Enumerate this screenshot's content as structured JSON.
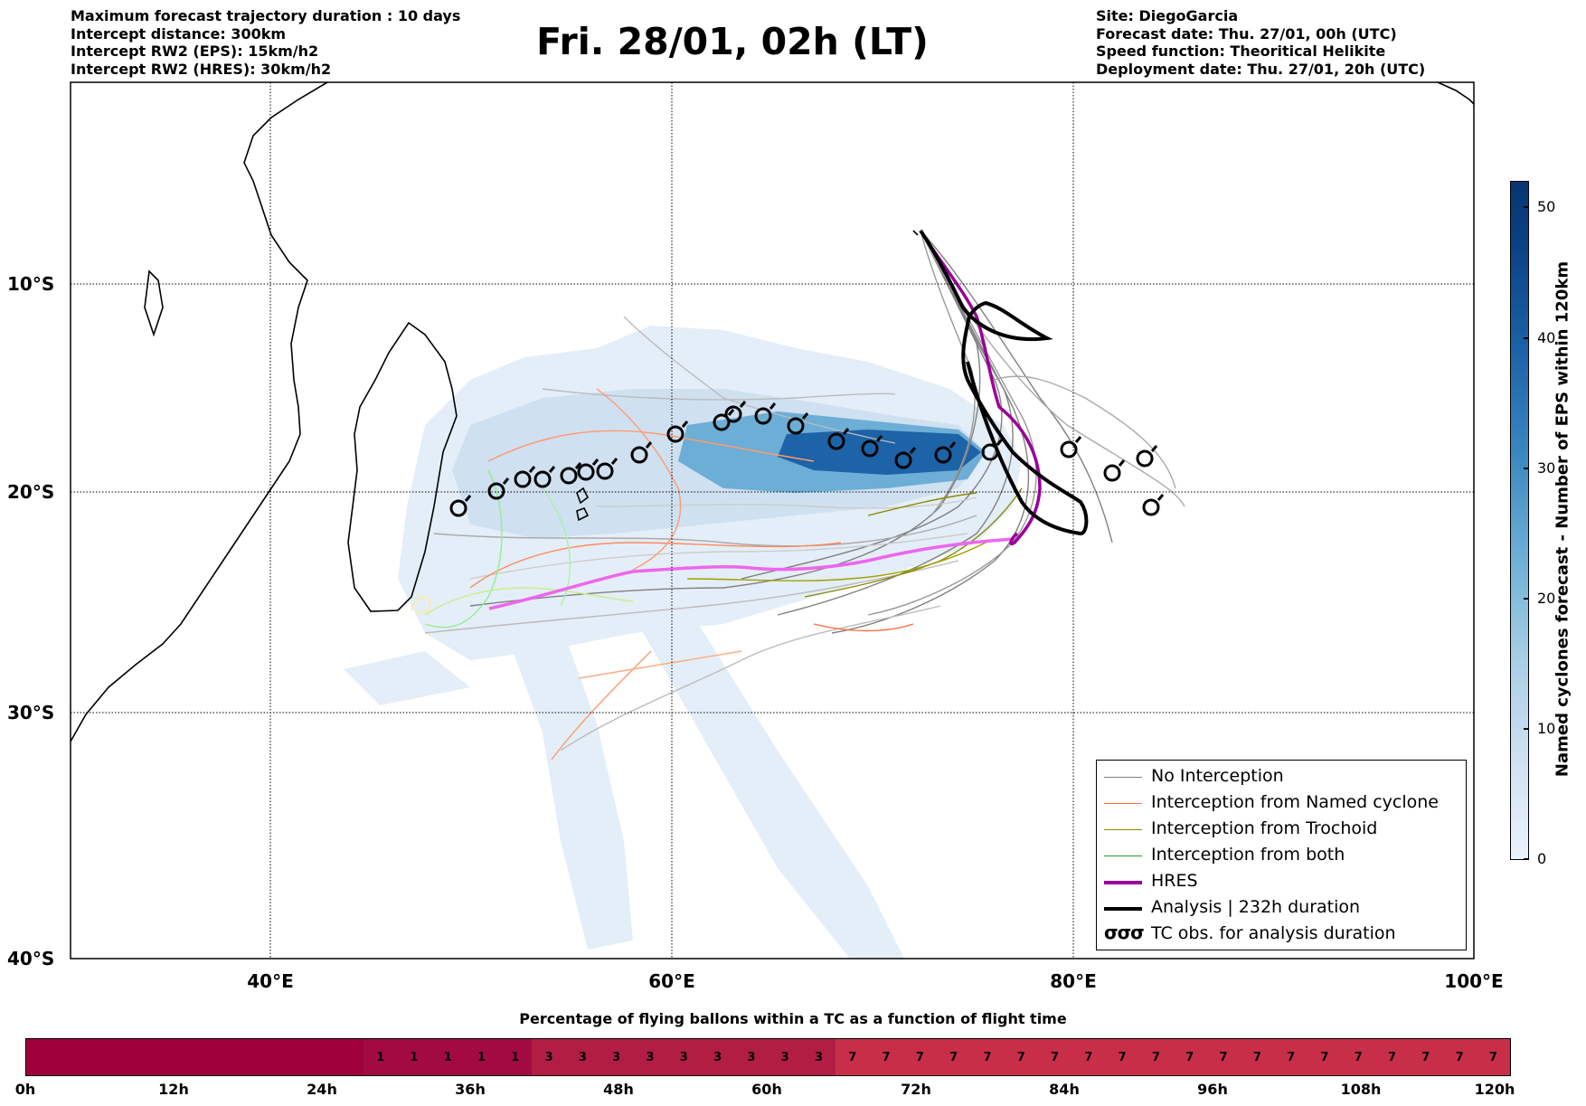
{
  "header_left": {
    "line1": "Maximum forecast trajectory duration : 10 days",
    "line2": "Intercept distance: 300km",
    "line3": "Intercept RW2 (EPS):  15km/h2",
    "line4": "Intercept RW2 (HRES): 30km/h2"
  },
  "title": "Fri. 28/01, 02h (LT)",
  "header_right": {
    "line1": "Site: DiegoGarcia",
    "line2": "Forecast date: Thu. 27/01, 00h (UTC)",
    "line3": "Speed function: Theoritical Helikite",
    "line4": "Deployment date: Thu. 27/01, 20h (UTC)"
  },
  "map": {
    "lat_labels": [
      "10°S",
      "20°S",
      "30°S",
      "40°S"
    ],
    "lon_labels": [
      "40°E",
      "60°E",
      "80°E",
      "100°E"
    ],
    "colors": {
      "no_interception": "#808080",
      "named_cyclone": "#ff6a3d",
      "trochoid": "#8a8a00",
      "both": "#2a9a2a",
      "hres": "#990099",
      "analysis": "#000000",
      "hres_light": "#ee66ee"
    }
  },
  "legend": {
    "items": [
      {
        "label": "No Interception",
        "icon": "grey-line"
      },
      {
        "label": "Interception from Named cyclone",
        "icon": "orange-line"
      },
      {
        "label": "Interception from Trochoid",
        "icon": "olive-line"
      },
      {
        "label": "Interception from both",
        "icon": "green-line"
      },
      {
        "label": "HRES",
        "icon": "purple-thick-line"
      },
      {
        "label": "Analysis | 232h duration",
        "icon": "black-thick-line"
      },
      {
        "label": "TC obs. for analysis duration",
        "icon": "cyclone-symbol-icon",
        "glyph": "σσσ"
      }
    ]
  },
  "colorbar": {
    "title": "Named cyclones forecast - Number of EPS within 120km",
    "ticks": [
      "0",
      "10",
      "20",
      "30",
      "40",
      "50"
    ]
  },
  "timebar": {
    "title": "Percentage of flying ballons within a TC as a function of flight time",
    "segments": [
      "",
      "",
      "",
      "",
      "",
      "",
      "",
      "",
      "",
      "",
      "1",
      "1",
      "1",
      "1",
      "1",
      "3",
      "3",
      "3",
      "3",
      "3",
      "3",
      "3",
      "3",
      "3",
      "7",
      "7",
      "7",
      "7",
      "7",
      "7",
      "7",
      "7",
      "7",
      "7",
      "7",
      "7",
      "7",
      "7",
      "7",
      "7",
      "7",
      "7",
      "7",
      "7"
    ],
    "segment_colors": {
      "empty": "#a0003c",
      "1": "#a30a40",
      "3": "#b21d44",
      "7": "#c82e48"
    },
    "ticks": [
      "0h",
      "12h",
      "24h",
      "36h",
      "48h",
      "60h",
      "72h",
      "84h",
      "96h",
      "108h",
      "120h"
    ]
  }
}
